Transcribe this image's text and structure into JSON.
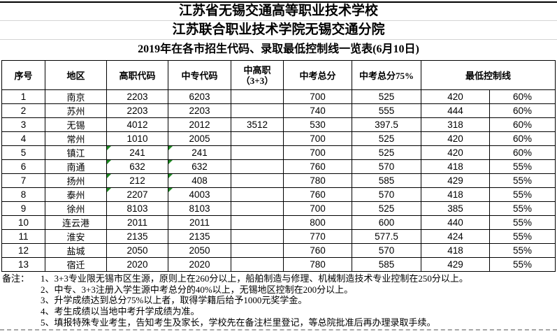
{
  "titles": {
    "school1": "江苏省无锡交通高等职业技术学校",
    "school2": "江苏联合职业技术学院无锡交通分院",
    "table_title": "2019年在各市招生代码、录取最低控制线一览表(6月10日)"
  },
  "table": {
    "headers": {
      "seq": "序号",
      "region": "地区",
      "gaozhi_code": "高职代码",
      "zhongzhuan_code": "中专代码",
      "zhonggaozhi_line1": "中高职",
      "zhonggaozhi_line2": "（3+3）",
      "zhongkao_total": "中考总分",
      "zhongkao_75": "中考总分75%",
      "min_control_line": "最低控制线"
    },
    "rows": [
      {
        "seq": "1",
        "region": "南京",
        "gaozhi": "2203",
        "zhongzhuan": "6203",
        "zgz": "",
        "total": "700",
        "p75": "525",
        "min1": "420",
        "min2": "60%",
        "code_flags": false
      },
      {
        "seq": "2",
        "region": "苏州",
        "gaozhi": "2203",
        "zhongzhuan": "2203",
        "zgz": "",
        "total": "740",
        "p75": "555",
        "min1": "444",
        "min2": "60%",
        "code_flags": false
      },
      {
        "seq": "3",
        "region": "无锡",
        "gaozhi": "4012",
        "zhongzhuan": "2012",
        "zgz": "3512",
        "total": "530",
        "p75": "397.5",
        "min1": "318",
        "min2": "60%",
        "code_flags": false
      },
      {
        "seq": "4",
        "region": "常州",
        "gaozhi": "1010",
        "zhongzhuan": "2005",
        "zgz": "",
        "total": "700",
        "p75": "525",
        "min1": "420",
        "min2": "60%",
        "code_flags": false
      },
      {
        "seq": "5",
        "region": "镇江",
        "gaozhi": "241",
        "zhongzhuan": "241",
        "zgz": "",
        "total": "700",
        "p75": "525",
        "min1": "420",
        "min2": "60%",
        "code_flags": true
      },
      {
        "seq": "6",
        "region": "南通",
        "gaozhi": "632",
        "zhongzhuan": "632",
        "zgz": "",
        "total": "760",
        "p75": "570",
        "min1": "418",
        "min2": "55%",
        "code_flags": true
      },
      {
        "seq": "7",
        "region": "扬州",
        "gaozhi": "212",
        "zhongzhuan": "408",
        "zgz": "",
        "total": "780",
        "p75": "585",
        "min1": "429",
        "min2": "55%",
        "code_flags": true
      },
      {
        "seq": "8",
        "region": "泰州",
        "gaozhi": "2207",
        "zhongzhuan": "4003",
        "zgz": "",
        "total": "760",
        "p75": "570",
        "min1": "418",
        "min2": "55%",
        "code_flags": true
      },
      {
        "seq": "9",
        "region": "徐州",
        "gaozhi": "8103",
        "zhongzhuan": "8103",
        "zgz": "",
        "total": "700",
        "p75": "525",
        "min1": "385",
        "min2": "55%",
        "code_flags": false
      },
      {
        "seq": "10",
        "region": "连云港",
        "gaozhi": "2011",
        "zhongzhuan": "2011",
        "zgz": "",
        "total": "800",
        "p75": "600",
        "min1": "440",
        "min2": "55%",
        "code_flags": false
      },
      {
        "seq": "11",
        "region": "淮安",
        "gaozhi": "2135",
        "zhongzhuan": "2135",
        "zgz": "",
        "total": "770",
        "p75": "577.5",
        "min1": "424",
        "min2": "55%",
        "code_flags": false
      },
      {
        "seq": "12",
        "region": "盐城",
        "gaozhi": "2050",
        "zhongzhuan": "2050",
        "zgz": "",
        "total": "760",
        "p75": "570",
        "min1": "418",
        "min2": "55%",
        "code_flags": false
      },
      {
        "seq": "13",
        "region": "宿迁",
        "gaozhi": "2020",
        "zhongzhuan": "2020",
        "zgz": "",
        "total": "780",
        "p75": "585",
        "min1": "429",
        "min2": "55%",
        "code_flags": false
      }
    ]
  },
  "notes": {
    "label": "备注：",
    "items": [
      "1、3+3专业限无锡市区生源，原则上在260分以上，船舶制造与修理、机械制造技术专业控制在250分以上。",
      "2、中专、3+3注册入学生源中考总分的40%以上，无锡地区控制在200分以上。",
      "3、升学成绩达到总分75%以上者，取得学籍后给予1000元奖学金。",
      "4、考生成绩以当地中考升学成绩为准。",
      "5、填报特殊专业考生，告知考生及家长，学校先在备注栏里登记，等总院批准后再办理录取手续。"
    ]
  },
  "colors": {
    "table_border": "#000000",
    "title_separator": "#d4d4d4",
    "error_flag_green": "#1f8b24",
    "pagebreak_dash": "#a6a6a6"
  }
}
